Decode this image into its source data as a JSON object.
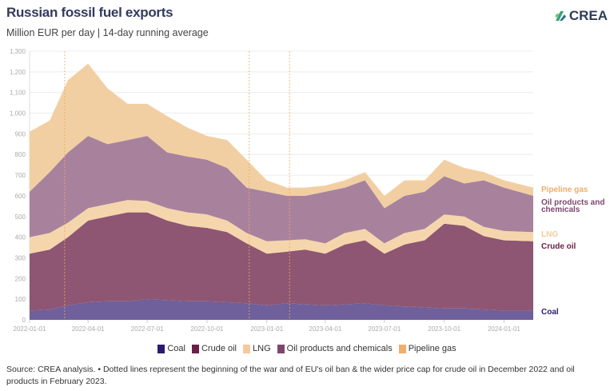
{
  "title": "Russian fossil fuel exports",
  "subtitle": "Million EUR per day | 14-day running average",
  "logo": {
    "text": "CREA"
  },
  "source": "Source: CREA analysis. • Dotted lines represent the beginning of the war and of EU's oil ban & the wider price cap for crude oil in December 2022 and oil products in February 2023.",
  "chart_data": {
    "type": "area",
    "stacked": true,
    "ylim": [
      0,
      1300
    ],
    "yticks": [
      "0",
      "100",
      "200",
      "300",
      "400",
      "500",
      "600",
      "700",
      "800",
      "900",
      "1,000",
      "1,100",
      "1,200",
      "1,300"
    ],
    "xticks": [
      "2022-01-01",
      "2022-04-01",
      "2022-07-01",
      "2022-10-01",
      "2023-01-01",
      "2023-04-01",
      "2023-07-01",
      "2023-10-01",
      "2024-01-01"
    ],
    "xlim": [
      "2022-01-01",
      "2024-02-15"
    ],
    "grid": true,
    "reference_lines": [
      "2022-02-24",
      "2022-12-05",
      "2023-02-05"
    ],
    "x": [
      "2022-01-01",
      "2022-02-01",
      "2022-03-01",
      "2022-04-01",
      "2022-05-01",
      "2022-06-01",
      "2022-07-01",
      "2022-08-01",
      "2022-09-01",
      "2022-10-01",
      "2022-11-01",
      "2022-12-01",
      "2023-01-01",
      "2023-02-01",
      "2023-03-01",
      "2023-04-01",
      "2023-05-01",
      "2023-06-01",
      "2023-07-01",
      "2023-08-01",
      "2023-09-01",
      "2023-10-01",
      "2023-11-01",
      "2023-12-01",
      "2024-01-01",
      "2024-02-15"
    ],
    "series": [
      {
        "name": "Coal",
        "color": "#2b1a6f",
        "fill": "#6f5f9b",
        "values": [
          45,
          50,
          70,
          85,
          90,
          90,
          100,
          95,
          90,
          90,
          85,
          80,
          70,
          80,
          75,
          70,
          75,
          80,
          70,
          65,
          60,
          55,
          55,
          50,
          45,
          45
        ]
      },
      {
        "name": "Crude oil",
        "color": "#6b1e47",
        "fill": "#8e5672",
        "values": [
          275,
          290,
          330,
          395,
          410,
          430,
          420,
          385,
          365,
          355,
          340,
          290,
          250,
          250,
          265,
          250,
          290,
          305,
          250,
          300,
          325,
          410,
          400,
          355,
          340,
          335
        ]
      },
      {
        "name": "LNG",
        "color": "#f6c99c",
        "fill": "#f5d6ac",
        "values": [
          80,
          80,
          70,
          60,
          60,
          60,
          55,
          60,
          65,
          65,
          55,
          50,
          60,
          55,
          50,
          50,
          55,
          55,
          50,
          55,
          55,
          45,
          45,
          45,
          45,
          45
        ]
      },
      {
        "name": "Oil products and chemicals",
        "color": "#7d476d",
        "fill": "#a8829d",
        "values": [
          220,
          295,
          340,
          350,
          290,
          290,
          315,
          270,
          270,
          265,
          255,
          220,
          240,
          215,
          210,
          250,
          220,
          235,
          170,
          180,
          180,
          185,
          160,
          225,
          210,
          175
        ]
      },
      {
        "name": "Pipeline gas",
        "color": "#efae6c",
        "fill": "#f2cfa2",
        "values": [
          290,
          250,
          350,
          350,
          270,
          175,
          155,
          175,
          140,
          115,
          135,
          135,
          55,
          40,
          40,
          30,
          35,
          40,
          60,
          75,
          55,
          80,
          75,
          40,
          35,
          40
        ]
      }
    ],
    "end_labels": [
      "Pipeline gas",
      "Oil products and chemicals",
      "LNG",
      "Crude oil",
      "Coal"
    ]
  }
}
